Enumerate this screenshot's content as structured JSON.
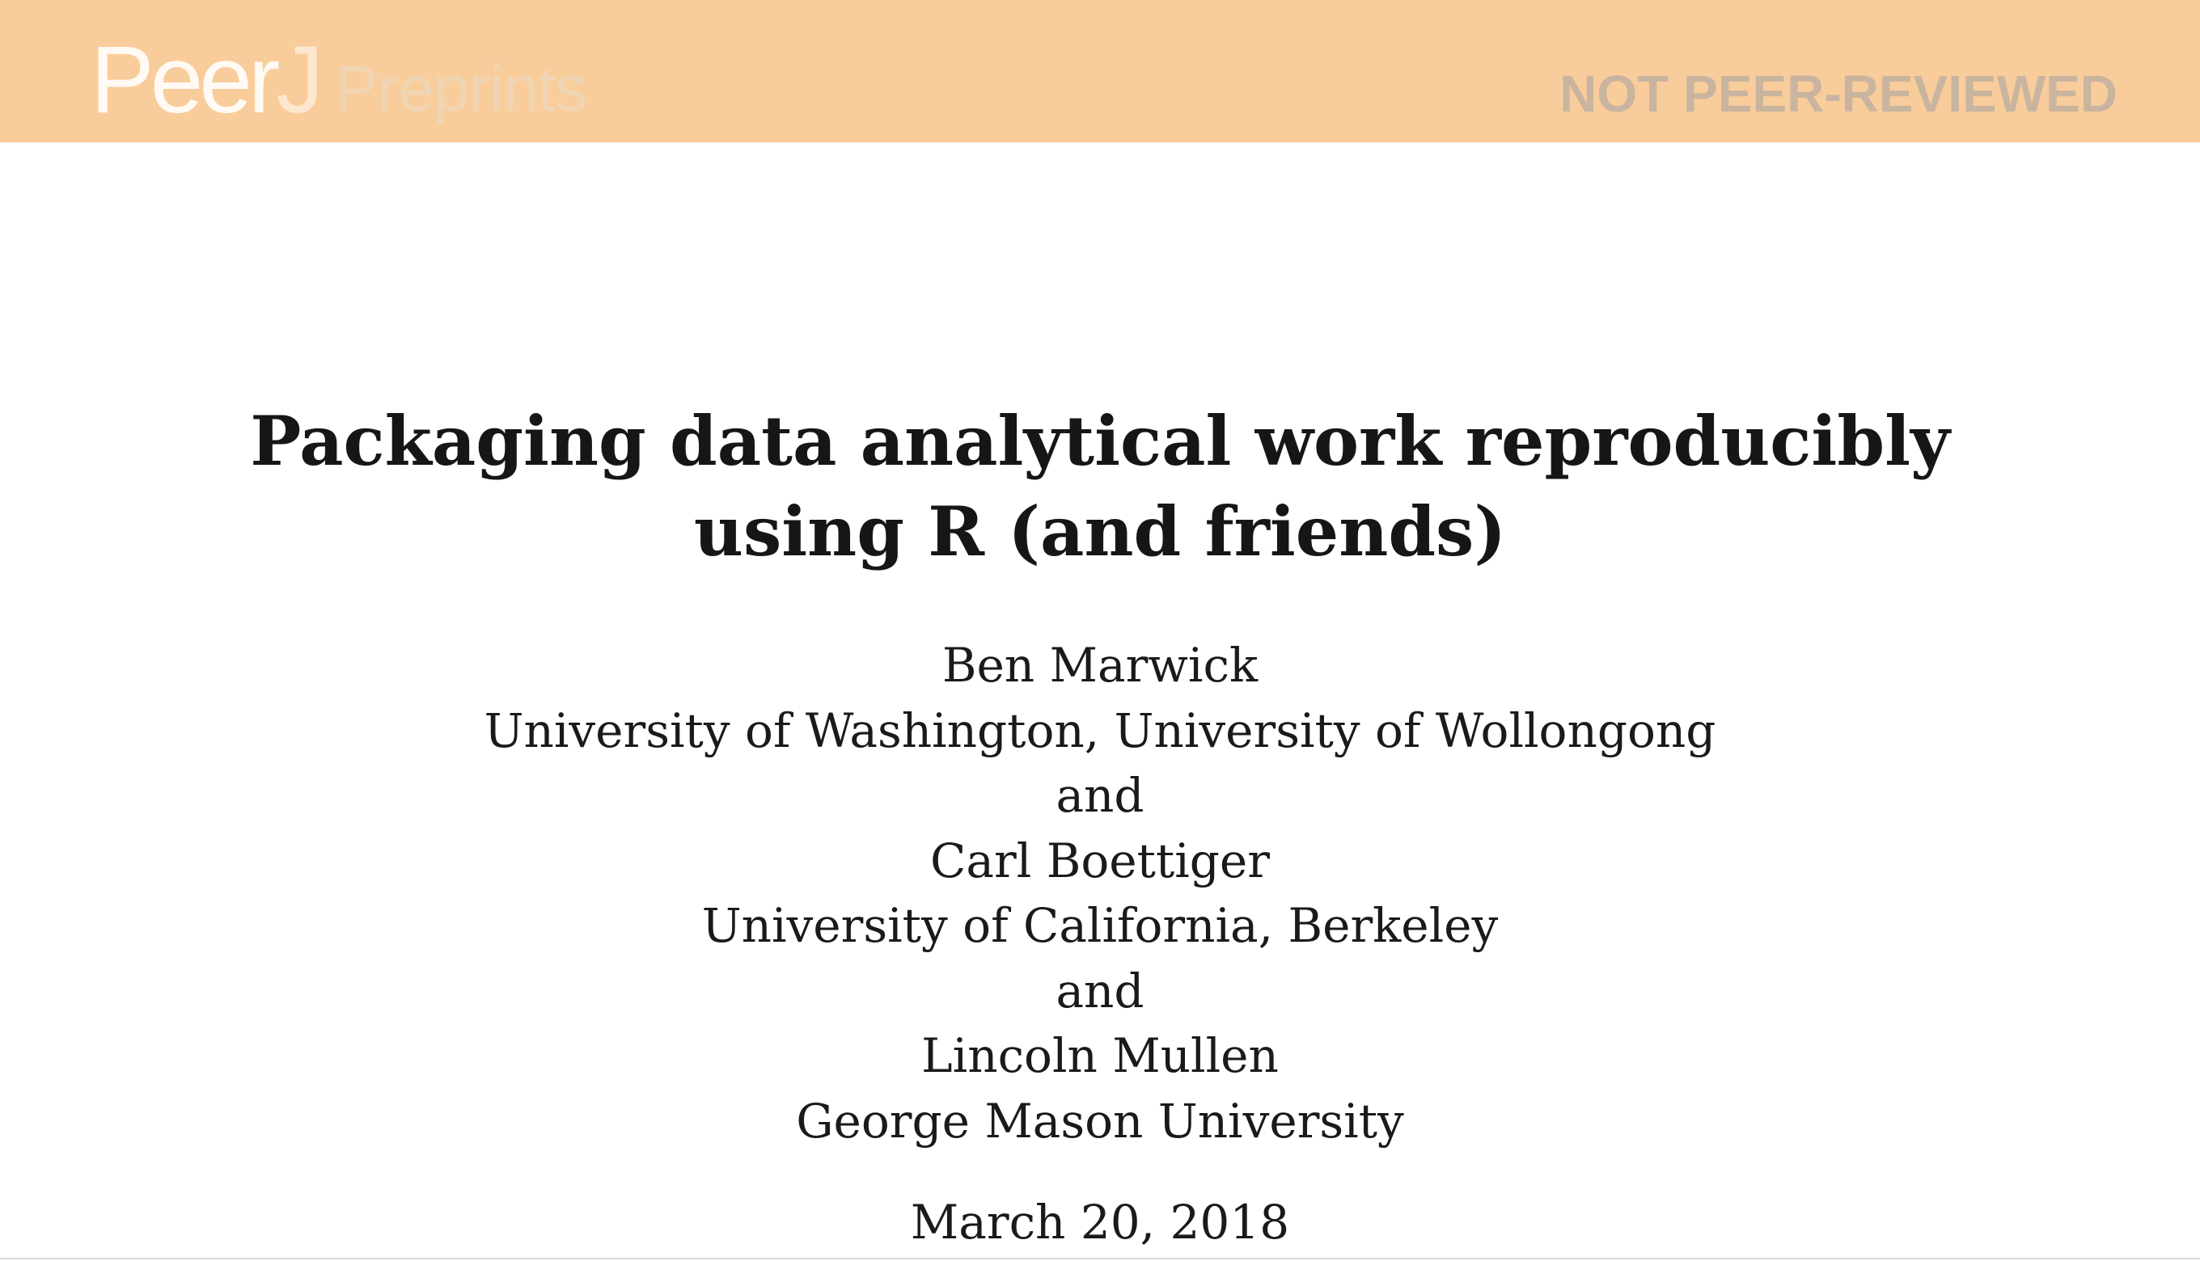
{
  "banner": {
    "logo_peer": "Peer",
    "logo_j": "J",
    "logo_preprints": "Preprints",
    "status": "NOT PEER-REVIEWED",
    "color": "#f9cc9b"
  },
  "paper": {
    "title_line1": "Packaging data analytical work reproducibly",
    "title_line2": "using R (and friends)",
    "author_lines": [
      "Ben Marwick",
      "University of Washington, University of Wollongong",
      "and",
      "Carl Boettiger",
      "University of California, Berkeley",
      "and",
      "Lincoln Mullen",
      "George Mason University"
    ],
    "date": "March 20, 2018"
  }
}
